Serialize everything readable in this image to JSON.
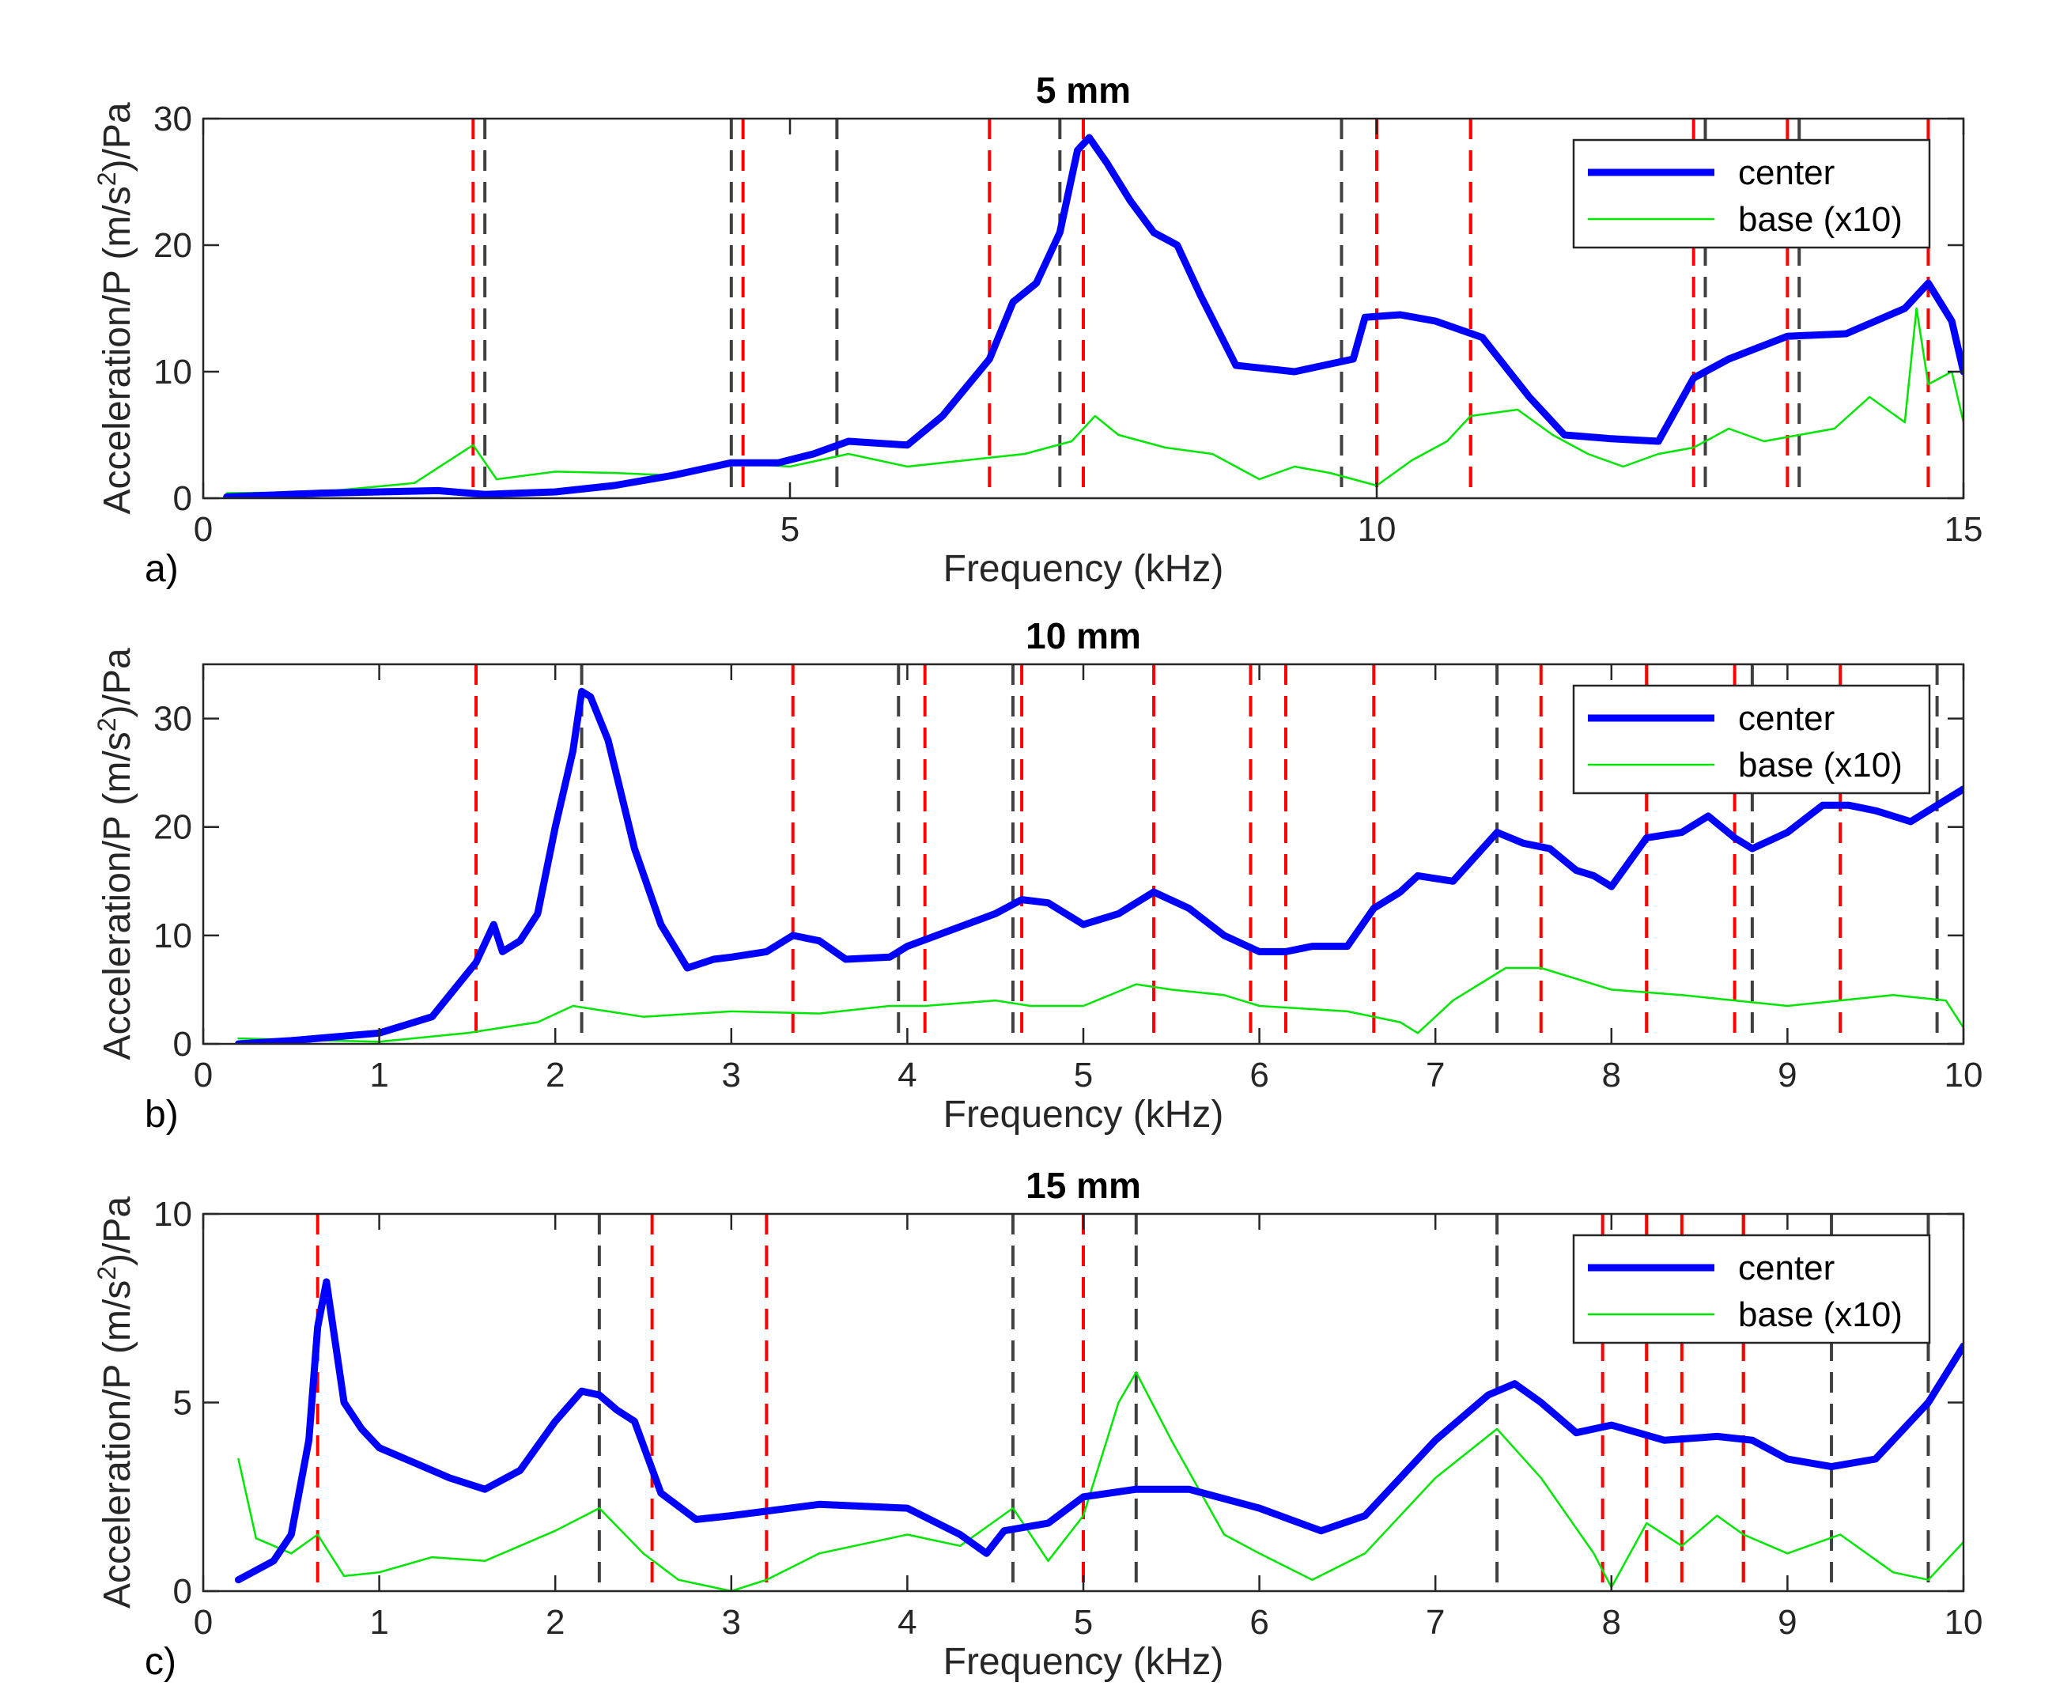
{
  "colors": {
    "center": "#0000ff",
    "base": "#00e600",
    "red_mode": "#ff0000",
    "black_mode": "#404040"
  },
  "chart_data": [
    {
      "type": "line",
      "panel_label": "a)",
      "title": "5 mm",
      "xlabel": "Frequency (kHz)",
      "ylabel": "Acceleration/P (m/s^2)/Pa",
      "ylabel_parts": [
        "Acceleration/P (m/s",
        "2",
        ")/Pa"
      ],
      "xlim": [
        0,
        15
      ],
      "ylim": [
        0,
        30
      ],
      "xticks": [
        0,
        5,
        10,
        15
      ],
      "yticks": [
        0,
        10,
        20,
        30
      ],
      "legend": [
        "center",
        "base (x10)"
      ],
      "red_modes": [
        2.3,
        4.6,
        6.7,
        7.5,
        10.0,
        10.8,
        12.7,
        13.5,
        14.7
      ],
      "black_modes": [
        2.4,
        4.5,
        5.4,
        7.3,
        9.7,
        10.8,
        12.8,
        13.6,
        14.7
      ],
      "series": [
        {
          "name": "center",
          "x": [
            0.2,
            1.0,
            2.0,
            2.4,
            3.0,
            3.5,
            4.0,
            4.5,
            4.9,
            5.2,
            5.5,
            6.0,
            6.3,
            6.7,
            6.9,
            7.1,
            7.3,
            7.45,
            7.55,
            7.7,
            7.9,
            8.1,
            8.3,
            8.5,
            8.8,
            9.0,
            9.3,
            9.6,
            9.8,
            9.9,
            10.2,
            10.5,
            10.9,
            11.3,
            11.6,
            12.0,
            12.4,
            12.7,
            13.0,
            13.5,
            14.0,
            14.5,
            14.7,
            14.9,
            15.0
          ],
          "y": [
            0.1,
            0.4,
            0.6,
            0.3,
            0.5,
            1.0,
            1.8,
            2.8,
            2.8,
            3.5,
            4.5,
            4.2,
            6.5,
            11.0,
            15.5,
            17.0,
            21.0,
            27.5,
            28.5,
            26.5,
            23.5,
            21.0,
            20.0,
            16.0,
            10.5,
            10.3,
            10.0,
            10.6,
            11.0,
            14.3,
            14.5,
            14.0,
            12.7,
            8.0,
            5.0,
            4.7,
            4.5,
            9.5,
            11.0,
            12.8,
            13.0,
            15.0,
            17.0,
            14.0,
            10.0
          ]
        },
        {
          "name": "base (x10)",
          "x": [
            0.2,
            1.0,
            1.8,
            2.3,
            2.5,
            3.0,
            3.5,
            4.0,
            4.5,
            5.0,
            5.5,
            6.0,
            6.5,
            7.0,
            7.4,
            7.6,
            7.8,
            8.2,
            8.6,
            9.0,
            9.3,
            9.6,
            9.8,
            10.0,
            10.3,
            10.6,
            10.8,
            11.2,
            11.5,
            11.8,
            12.1,
            12.4,
            12.7,
            13.0,
            13.3,
            13.6,
            13.9,
            14.2,
            14.5,
            14.6,
            14.7,
            14.9,
            15.0
          ],
          "y": [
            0.4,
            0.5,
            1.2,
            4.2,
            1.5,
            2.1,
            2.0,
            1.8,
            2.8,
            2.5,
            3.5,
            2.5,
            3.0,
            3.5,
            4.5,
            6.5,
            5.0,
            4.0,
            3.5,
            1.5,
            2.5,
            2.0,
            1.5,
            1.0,
            3.0,
            4.5,
            6.5,
            7.0,
            5.0,
            3.5,
            2.5,
            3.5,
            4.0,
            5.5,
            4.5,
            5.0,
            5.5,
            8.0,
            6.0,
            15.0,
            9.0,
            10.0,
            6.0
          ]
        }
      ]
    },
    {
      "type": "line",
      "panel_label": "b)",
      "title": "10 mm",
      "xlabel": "Frequency (kHz)",
      "ylabel": "Acceleration/P (m/s^2)/Pa",
      "ylabel_parts": [
        "Acceleration/P (m/s",
        "2",
        ")/Pa"
      ],
      "xlim": [
        0,
        10
      ],
      "ylim": [
        0,
        35
      ],
      "xticks": [
        0,
        1,
        2,
        3,
        4,
        5,
        6,
        7,
        8,
        9,
        10
      ],
      "yticks": [
        0,
        10,
        20,
        30
      ],
      "legend": [
        "center",
        "base (x10)"
      ],
      "red_modes": [
        1.55,
        3.35,
        4.1,
        4.65,
        5.4,
        5.95,
        6.15,
        6.65,
        7.6,
        8.2,
        8.7,
        9.3
      ],
      "black_modes": [
        2.15,
        3.95,
        4.6,
        7.35,
        8.2,
        8.8,
        9.85
      ],
      "series": [
        {
          "name": "center",
          "x": [
            0.2,
            0.5,
            1.0,
            1.3,
            1.55,
            1.65,
            1.7,
            1.8,
            1.9,
            2.0,
            2.1,
            2.15,
            2.2,
            2.3,
            2.45,
            2.6,
            2.75,
            2.9,
            3.0,
            3.2,
            3.35,
            3.5,
            3.65,
            3.9,
            4.0,
            4.2,
            4.5,
            4.65,
            4.8,
            5.0,
            5.2,
            5.4,
            5.6,
            5.8,
            6.0,
            6.15,
            6.3,
            6.5,
            6.65,
            6.8,
            6.9,
            7.1,
            7.35,
            7.5,
            7.65,
            7.8,
            7.9,
            8.0,
            8.2,
            8.4,
            8.55,
            8.7,
            8.8,
            9.0,
            9.2,
            9.35,
            9.5,
            9.7,
            9.85,
            10.0
          ],
          "y": [
            0.0,
            0.3,
            1.0,
            2.5,
            7.5,
            11.0,
            8.5,
            9.5,
            12.0,
            20.0,
            27.0,
            32.5,
            32.0,
            28.0,
            18.0,
            11.0,
            7.0,
            7.8,
            8.0,
            8.5,
            10.0,
            9.5,
            7.8,
            8.0,
            9.0,
            10.2,
            12.0,
            13.3,
            13.0,
            11.0,
            12.0,
            14.0,
            12.5,
            10.0,
            8.5,
            8.5,
            9.0,
            9.0,
            12.5,
            14.0,
            15.5,
            15.0,
            19.5,
            18.5,
            18.0,
            16.0,
            15.5,
            14.5,
            19.0,
            19.5,
            21.0,
            19.0,
            18.0,
            19.5,
            22.0,
            22.0,
            21.5,
            20.5,
            22.0,
            23.5
          ]
        },
        {
          "name": "base (x10)",
          "x": [
            0.2,
            1.0,
            1.5,
            1.7,
            1.9,
            2.1,
            2.3,
            2.5,
            3.0,
            3.5,
            3.9,
            4.1,
            4.5,
            4.7,
            5.0,
            5.3,
            5.5,
            5.8,
            6.0,
            6.5,
            6.8,
            6.9,
            7.1,
            7.4,
            7.6,
            7.8,
            8.0,
            8.4,
            8.7,
            9.0,
            9.3,
            9.6,
            9.9,
            10.0
          ],
          "y": [
            0.5,
            0.2,
            1.0,
            1.5,
            2.0,
            3.5,
            3.0,
            2.5,
            3.0,
            2.8,
            3.5,
            3.5,
            4.0,
            3.5,
            3.5,
            5.5,
            5.0,
            4.5,
            3.5,
            3.0,
            2.0,
            1.0,
            4.0,
            7.0,
            7.0,
            6.0,
            5.0,
            4.5,
            4.0,
            3.5,
            4.0,
            4.5,
            4.0,
            1.5
          ]
        }
      ]
    },
    {
      "type": "line",
      "panel_label": "c)",
      "title": "15 mm",
      "xlabel": "Frequency (kHz)",
      "ylabel": "Acceleration/P (m/s^2)/Pa",
      "ylabel_parts": [
        "Acceleration/P (m/s",
        "2",
        ")/Pa"
      ],
      "xlim": [
        0,
        10
      ],
      "ylim": [
        0,
        10
      ],
      "xticks": [
        0,
        1,
        2,
        3,
        4,
        5,
        6,
        7,
        8,
        9,
        10
      ],
      "yticks": [
        0,
        5,
        10
      ],
      "legend": [
        "center",
        "base (x10)"
      ],
      "red_modes": [
        0.65,
        2.55,
        3.2,
        5.0,
        7.95,
        8.2,
        8.4,
        8.75
      ],
      "black_modes": [
        2.25,
        4.6,
        5.3,
        7.35,
        8.2,
        8.75,
        9.25,
        9.8
      ],
      "series": [
        {
          "name": "center",
          "x": [
            0.2,
            0.4,
            0.5,
            0.6,
            0.65,
            0.7,
            0.8,
            0.9,
            1.0,
            1.2,
            1.4,
            1.6,
            1.8,
            2.0,
            2.15,
            2.25,
            2.35,
            2.45,
            2.6,
            2.8,
            3.0,
            3.5,
            4.0,
            4.3,
            4.45,
            4.55,
            4.8,
            5.0,
            5.3,
            5.6,
            6.0,
            6.35,
            6.6,
            6.8,
            7.0,
            7.3,
            7.45,
            7.6,
            7.8,
            8.0,
            8.3,
            8.6,
            8.8,
            9.0,
            9.25,
            9.5,
            9.8,
            10.0
          ],
          "y": [
            0.3,
            0.8,
            1.5,
            4.0,
            7.0,
            8.2,
            5.0,
            4.3,
            3.8,
            3.4,
            3.0,
            2.7,
            3.2,
            4.5,
            5.3,
            5.2,
            4.8,
            4.5,
            2.6,
            1.9,
            2.0,
            2.3,
            2.2,
            1.5,
            1.0,
            1.6,
            1.8,
            2.5,
            2.7,
            2.7,
            2.2,
            1.6,
            2.0,
            3.0,
            4.0,
            5.2,
            5.5,
            5.0,
            4.2,
            4.4,
            4.0,
            4.1,
            4.0,
            3.5,
            3.3,
            3.5,
            5.0,
            6.5
          ]
        },
        {
          "name": "base (x10)",
          "x": [
            0.2,
            0.3,
            0.5,
            0.65,
            0.8,
            1.0,
            1.3,
            1.6,
            2.0,
            2.25,
            2.5,
            2.7,
            3.0,
            3.2,
            3.5,
            4.0,
            4.3,
            4.6,
            4.8,
            5.0,
            5.2,
            5.3,
            5.5,
            5.8,
            6.0,
            6.3,
            6.6,
            7.0,
            7.35,
            7.6,
            7.9,
            8.0,
            8.2,
            8.4,
            8.6,
            8.75,
            9.0,
            9.3,
            9.6,
            9.8,
            10.0
          ],
          "y": [
            3.5,
            1.4,
            1.0,
            1.5,
            0.4,
            0.5,
            0.9,
            0.8,
            1.6,
            2.2,
            1.0,
            0.3,
            0.0,
            0.3,
            1.0,
            1.5,
            1.2,
            2.2,
            0.8,
            2.0,
            5.0,
            5.8,
            4.0,
            1.5,
            1.0,
            0.3,
            1.0,
            3.0,
            4.3,
            3.0,
            1.0,
            0.1,
            1.8,
            1.2,
            2.0,
            1.5,
            1.0,
            1.5,
            0.5,
            0.3,
            1.3
          ]
        }
      ]
    }
  ]
}
